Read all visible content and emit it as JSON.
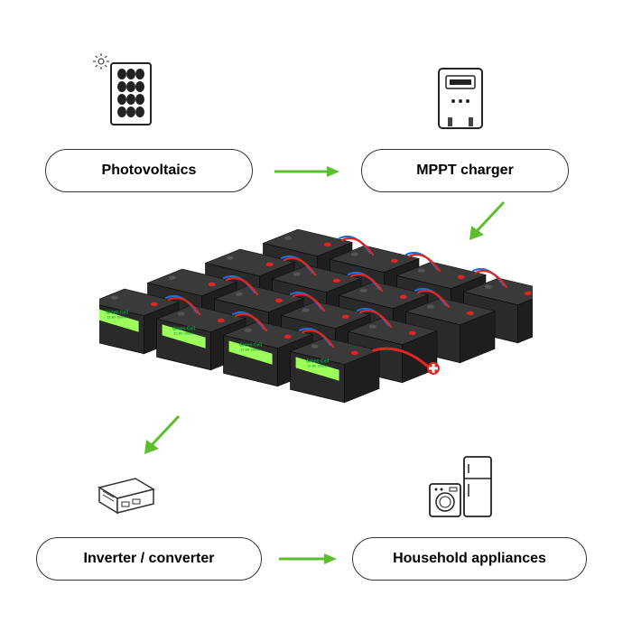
{
  "diagram": {
    "type": "flowchart",
    "background_color": "#ffffff",
    "arrow_color": "#5bbf2d",
    "pill_border_color": "#333333",
    "pill_text_color": "#111111",
    "pill_fontsize": 16,
    "nodes": {
      "photovoltaics": {
        "label": "Photovoltaics"
      },
      "mppt": {
        "label": "MPPT charger"
      },
      "inverter": {
        "label": "Inverter / converter"
      },
      "appliances": {
        "label": "Household appliances"
      }
    },
    "edges": [
      [
        "photovoltaics",
        "mppt"
      ],
      [
        "mppt",
        "battery_bank"
      ],
      [
        "battery_bank",
        "inverter"
      ],
      [
        "inverter",
        "appliances"
      ]
    ],
    "battery_bank": {
      "rows": 4,
      "cols": 4,
      "brand_label": "Green Cell",
      "spec_label": "12.8V  200Ah",
      "body_color": "#2a2a2a",
      "top_color": "#3a3a3a",
      "label_panel_color": "#9dff5c",
      "terminal_pos_color": "#e2261f",
      "terminal_neg_color": "#1c6fd6",
      "wire_blue": "#1c6fd6",
      "wire_red": "#e2261f"
    }
  }
}
